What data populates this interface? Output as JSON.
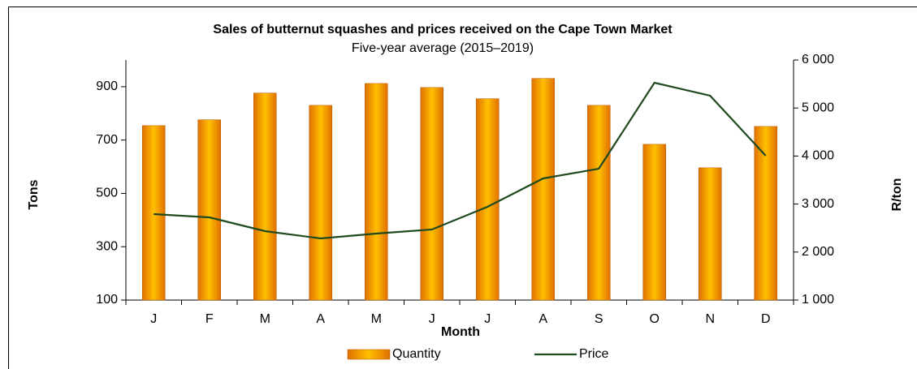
{
  "chart_data": {
    "type": "bar_line",
    "title": "Sales of butternut squashes and prices received on the Cape Town Market",
    "subtitle": "Five-year average (2015–2019)",
    "x_label": "Month",
    "y_label": "Tons",
    "y2_label": "R/ton",
    "categories": [
      "J",
      "F",
      "M",
      "A",
      "M",
      "J",
      "J",
      "A",
      "S",
      "O",
      "N",
      "D"
    ],
    "series": [
      {
        "name": "Quantity",
        "type": "bar",
        "color": "#ffc000",
        "values": [
          754,
          776,
          876,
          830,
          912,
          897,
          855,
          931,
          830,
          684,
          596,
          751
        ]
      },
      {
        "name": "Price",
        "type": "line",
        "axis": "y2",
        "color": "#1f4a1f",
        "values": [
          2790,
          2723,
          2436,
          2284,
          2385,
          2470,
          2943,
          3534,
          3736,
          5527,
          5257,
          4007
        ]
      }
    ],
    "ylim": [
      100,
      1000
    ],
    "yticks": [
      100,
      300,
      500,
      700,
      900
    ],
    "y2lim": [
      1000,
      6000
    ],
    "y2ticks": [
      {
        "value": 1000,
        "label": "1 000"
      },
      {
        "value": 2000,
        "label": "2 000"
      },
      {
        "value": 3000,
        "label": "3 000"
      },
      {
        "value": 4000,
        "label": "4 000"
      },
      {
        "value": 5000,
        "label": "5 000"
      },
      {
        "value": 6000,
        "label": "6 000"
      }
    ],
    "legend": "bottom"
  }
}
